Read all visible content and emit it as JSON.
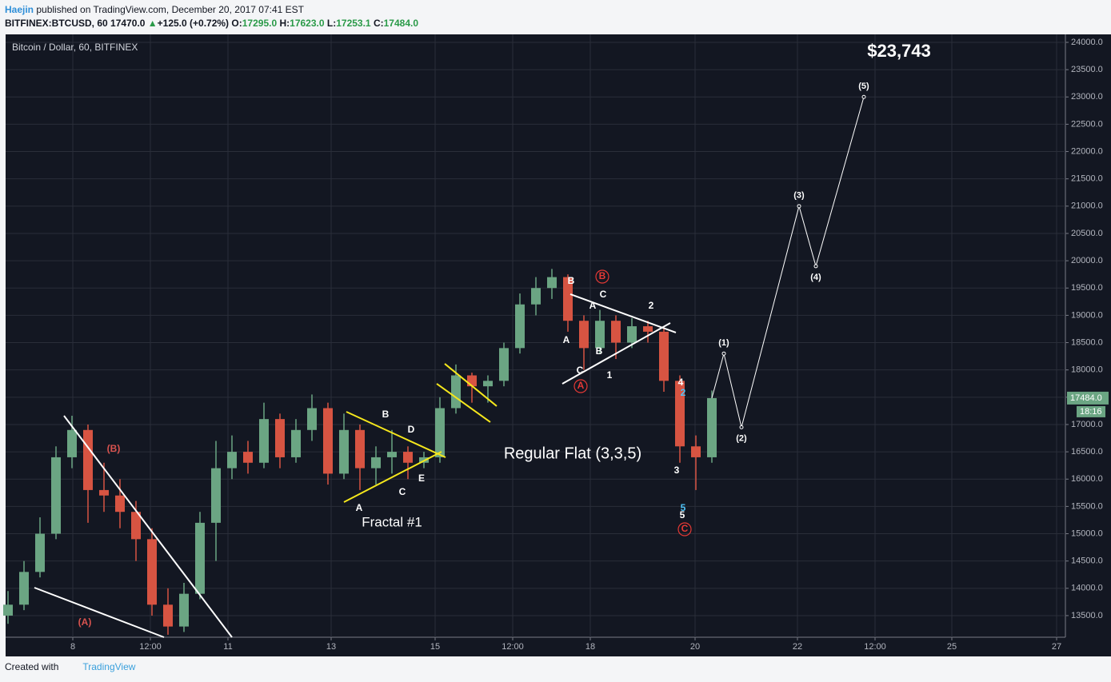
{
  "header": {
    "author": "Haejin",
    "published": " published on TradingView.com, December 20, 2017 07:41 EST",
    "symbol": "BITFINEX:BTCUSD, 60",
    "price": "17470.0",
    "arrow": "▲",
    "change": "+125.0 (+0.72%)",
    "o_label": "O:",
    "o": "17295.0",
    "h_label": "H:",
    "h": "17623.0",
    "l_label": "L:",
    "l": "17253.1",
    "c_label": "C:",
    "c": "17484.0"
  },
  "footer": {
    "text": "Created with",
    "brand": "TradingView"
  },
  "chart_data": {
    "type": "candlestick",
    "title": "Bitcoin / Dollar, 60, BITFINEX",
    "background": "#131722",
    "grid": true,
    "grid_color": "#2a2e39",
    "up_color": "#6ba583",
    "down_color": "#d75442",
    "xlim": [
      0,
      1325
    ],
    "ylim": [
      13104,
      24146
    ],
    "xticks": [
      {
        "value": 84,
        "label": "8"
      },
      {
        "value": 181,
        "label": "12:00"
      },
      {
        "value": 278,
        "label": "11"
      },
      {
        "value": 407,
        "label": "13"
      },
      {
        "value": 537,
        "label": "15"
      },
      {
        "value": 634,
        "label": "12:00"
      },
      {
        "value": 731,
        "label": "18"
      },
      {
        "value": 862,
        "label": "20"
      },
      {
        "value": 990,
        "label": "22"
      },
      {
        "value": 1087,
        "label": "12:00"
      },
      {
        "value": 1183,
        "label": "25"
      },
      {
        "value": 1314,
        "label": "27"
      }
    ],
    "yticks": [
      {
        "value": 13500,
        "label": "13500.0"
      },
      {
        "value": 14000,
        "label": "14000.0"
      },
      {
        "value": 14500,
        "label": "14500.0"
      },
      {
        "value": 15000,
        "label": "15000.0"
      },
      {
        "value": 15500,
        "label": "15500.0"
      },
      {
        "value": 16000,
        "label": "16000.0"
      },
      {
        "value": 16500,
        "label": "16500.0"
      },
      {
        "value": 17000,
        "label": "17000.0"
      },
      {
        "value": 17500,
        "label": "17500.0"
      },
      {
        "value": 18000,
        "label": "18000.0"
      },
      {
        "value": 18500,
        "label": "18500.0"
      },
      {
        "value": 19000,
        "label": "19000.0"
      },
      {
        "value": 19500,
        "label": "19500.0"
      },
      {
        "value": 20000,
        "label": "20000.0"
      },
      {
        "value": 20500,
        "label": "20500.0"
      },
      {
        "value": 21000,
        "label": "21000.0"
      },
      {
        "value": 21500,
        "label": "21500.0"
      },
      {
        "value": 22000,
        "label": "22000.0"
      },
      {
        "value": 22500,
        "label": "22500.0"
      },
      {
        "value": 23000,
        "label": "23000.0"
      },
      {
        "value": 23500,
        "label": "23500.0"
      },
      {
        "value": 24000,
        "label": "24000.0"
      }
    ],
    "candles": {
      "x": [
        3,
        23,
        43,
        63,
        83,
        103,
        123,
        143,
        163,
        183,
        203,
        223,
        243,
        263,
        283,
        303,
        323,
        343,
        363,
        383,
        403,
        423,
        443,
        463,
        483,
        503,
        523,
        543,
        563,
        583,
        603,
        623,
        643,
        663,
        683,
        703,
        723,
        743,
        763,
        783,
        803,
        823,
        843,
        863,
        883
      ],
      "open": [
        13500,
        13700,
        14300,
        15000,
        16400,
        16900,
        15800,
        15700,
        15400,
        14900,
        13700,
        13300,
        13900,
        15200,
        16200,
        16500,
        16300,
        17100,
        16400,
        16900,
        17300,
        16100,
        16900,
        16200,
        16400,
        16500,
        16300,
        16400,
        17300,
        17900,
        17700,
        17800,
        18400,
        19200,
        19500,
        19700,
        18900,
        18400,
        18900,
        18500,
        18800,
        18700,
        17800,
        16600,
        16400
      ],
      "high": [
        13950,
        14500,
        15300,
        16600,
        17161,
        17000,
        16300,
        16000,
        15600,
        15100,
        14000,
        14100,
        15400,
        16700,
        16800,
        16700,
        17400,
        17200,
        17100,
        17550,
        17400,
        17200,
        17000,
        16600,
        16900,
        16600,
        16500,
        17500,
        18100,
        17950,
        17900,
        18500,
        19400,
        19700,
        19850,
        19750,
        19000,
        19100,
        19000,
        18950,
        18900,
        18800,
        17900,
        16800,
        17623
      ],
      "low": [
        13350,
        13600,
        14200,
        14900,
        16200,
        15200,
        15400,
        15100,
        14500,
        13500,
        13150,
        13200,
        13800,
        14500,
        16000,
        16100,
        16200,
        16200,
        16300,
        16700,
        15900,
        16000,
        15800,
        15900,
        16100,
        16000,
        16200,
        16300,
        17200,
        17400,
        17400,
        17700,
        18300,
        19000,
        19300,
        18700,
        18000,
        18300,
        18200,
        18400,
        18500,
        17600,
        16300,
        15800,
        16300
      ],
      "close": [
        13700,
        14300,
        15000,
        16400,
        16900,
        15800,
        15700,
        15400,
        14900,
        13700,
        13300,
        13900,
        15200,
        16200,
        16500,
        16300,
        17100,
        16400,
        16900,
        17300,
        16100,
        16900,
        16200,
        16400,
        16500,
        16300,
        16400,
        17300,
        17900,
        17700,
        17800,
        18400,
        19200,
        19500,
        19700,
        18900,
        18400,
        18900,
        18500,
        18800,
        18700,
        17800,
        16600,
        16400,
        17484
      ]
    },
    "last_price": {
      "value": 17484,
      "label": "17484.0"
    },
    "countdown": "18:16",
    "projection": {
      "color": "#ffffff",
      "x": [
        898,
        920,
        992,
        1013,
        1073
      ],
      "values": [
        18300,
        16950,
        21000,
        19900,
        23000
      ],
      "labels": [
        "(1)",
        "(2)",
        "(3)",
        "(4)",
        "(5)"
      ]
    },
    "trendlines": [
      {
        "color": "#ffffff",
        "x": [
          73,
          283
        ],
        "values": [
          17161,
          13104
        ]
      },
      {
        "color": "#ffffff",
        "x": [
          36,
          198
        ],
        "values": [
          14012,
          13104
        ]
      },
      {
        "color": "#f5e71c",
        "x": [
          426,
          550
        ],
        "values": [
          17234,
          16399
        ]
      },
      {
        "color": "#f5e71c",
        "x": [
          423,
          545
        ],
        "values": [
          15579,
          16502
        ]
      },
      {
        "color": "#f5e71c",
        "x": [
          549,
          614
        ],
        "values": [
          18113,
          17337
        ]
      },
      {
        "color": "#f5e71c",
        "x": [
          539,
          606
        ],
        "values": [
          17747,
          17044
        ]
      },
      {
        "color": "#ffffff",
        "x": [
          706,
          838
        ],
        "values": [
          19387,
          18684
        ]
      },
      {
        "color": "#ffffff",
        "x": [
          696,
          831
        ],
        "values": [
          17747,
          18860
        ]
      }
    ],
    "annotations": [
      {
        "text": "(B)",
        "color": "#d9534f"
      },
      {
        "text": "(A)",
        "color": "#d9534f"
      },
      {
        "text": "A",
        "color": "#ffffff"
      },
      {
        "text": "B",
        "color": "#ffffff"
      },
      {
        "text": "C",
        "color": "#ffffff"
      },
      {
        "text": "D",
        "color": "#ffffff"
      },
      {
        "text": "E",
        "color": "#ffffff"
      },
      {
        "text": "Fractal #1",
        "color": "#ffffff"
      },
      {
        "text": "Regular Flat (3,3,5)",
        "color": "#ffffff"
      },
      {
        "text": "B",
        "color": "#ffffff"
      },
      {
        "text": "C",
        "color": "#ffffff"
      },
      {
        "text": "A",
        "color": "#ffffff"
      },
      {
        "text": "2",
        "color": "#ffffff"
      },
      {
        "text": "A",
        "color": "#ffffff"
      },
      {
        "text": "B",
        "color": "#ffffff"
      },
      {
        "text": "C",
        "color": "#ffffff"
      },
      {
        "text": "1",
        "color": "#ffffff"
      },
      {
        "text": "4",
        "color": "#ffffff"
      },
      {
        "text": "2",
        "color": "#4fc3f7"
      },
      {
        "text": "3",
        "color": "#ffffff"
      },
      {
        "text": "5",
        "color": "#4fc3f7"
      },
      {
        "text": "5",
        "color": "#ffffff"
      },
      {
        "text": "B",
        "color": "#e53935",
        "circled": true
      },
      {
        "text": "A",
        "color": "#e53935",
        "circled": true
      },
      {
        "text": "C",
        "color": "#e53935",
        "circled": true
      },
      {
        "text": "$23,743",
        "color": "#ffffff"
      }
    ]
  }
}
